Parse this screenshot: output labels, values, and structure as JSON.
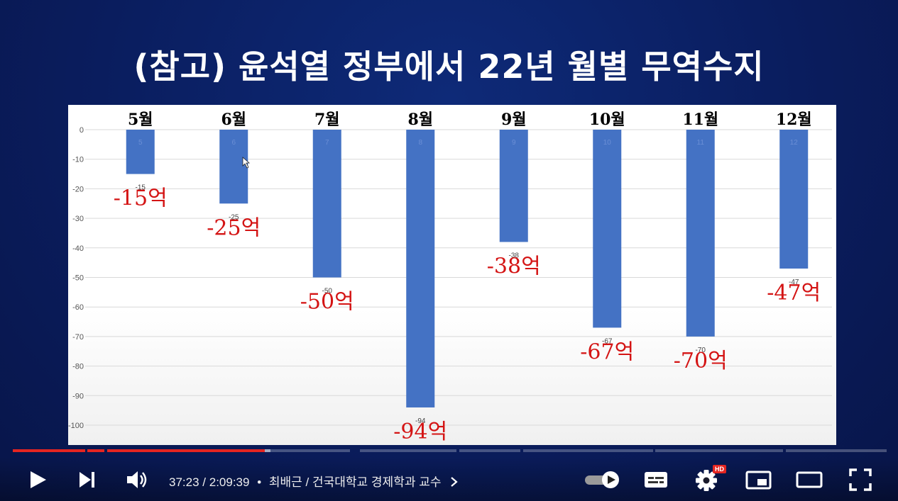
{
  "slide": {
    "title": "(참고) 윤석열 정부에서 22년 월별 무역수지"
  },
  "chart_data": {
    "type": "bar",
    "categories": [
      "5월",
      "6월",
      "7월",
      "8월",
      "9월",
      "10월",
      "11월",
      "12월"
    ],
    "in_bar_labels": [
      "5",
      "6",
      "7",
      "8",
      "9",
      "10",
      "11",
      "12"
    ],
    "values": [
      -15,
      -25,
      -50,
      -94,
      -38,
      -67,
      -70,
      -47
    ],
    "value_labels": [
      "-15",
      "-25",
      "-50",
      "-94",
      "-38",
      "-67",
      "-70",
      "-47"
    ],
    "annotations": [
      "-15억",
      "-25억",
      "-50억",
      "-94억",
      "-38억",
      "-67억",
      "-70억",
      "-47억"
    ],
    "yticks": [
      "0",
      "-10",
      "-20",
      "-30",
      "-40",
      "-50",
      "-60",
      "-70",
      "-80",
      "-90",
      "-100"
    ],
    "ylim": [
      -100,
      0
    ],
    "grid": true,
    "bar_color": "#4472c4",
    "annotation_color": "#d41414"
  },
  "player": {
    "time_current": "37:23",
    "time_separator": "/",
    "time_total": "2:09:39",
    "bullet": "•",
    "chapter_title": "최배근 / 건국대학교 경제학과 교수",
    "chapter_chevron": "chevron-right-icon",
    "hd_badge": "HD",
    "played_fraction": 0.2885,
    "buffered_fraction": 0.2945,
    "colors": {
      "played": "#e52521",
      "accent": "#e52521"
    },
    "icons": [
      "play-icon",
      "next-icon",
      "volume-icon",
      "autoplay-toggle-icon",
      "subtitles-icon",
      "settings-icon",
      "miniplayer-icon",
      "theater-icon",
      "fullscreen-icon"
    ]
  }
}
